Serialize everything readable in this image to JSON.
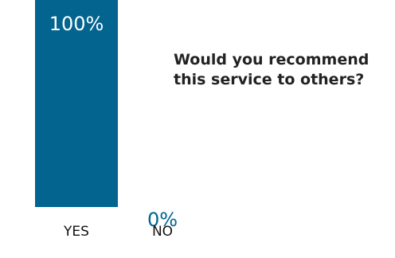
{
  "chart_data": {
    "type": "bar",
    "title": "",
    "xlabel": "",
    "ylabel": "",
    "categories": [
      "YES",
      "NO"
    ],
    "values": [
      100,
      0
    ],
    "value_labels": [
      "100%",
      "0%"
    ],
    "ylim": [
      0,
      100
    ],
    "grid": false,
    "annotations": [
      "Would you recommend",
      "this service to others?"
    ]
  },
  "colors": {
    "bar": "#02648f",
    "value_label_inside": "#ffffff",
    "value_label_outside": "#02648f",
    "category_label": "#111111",
    "question_text": "#222222"
  }
}
